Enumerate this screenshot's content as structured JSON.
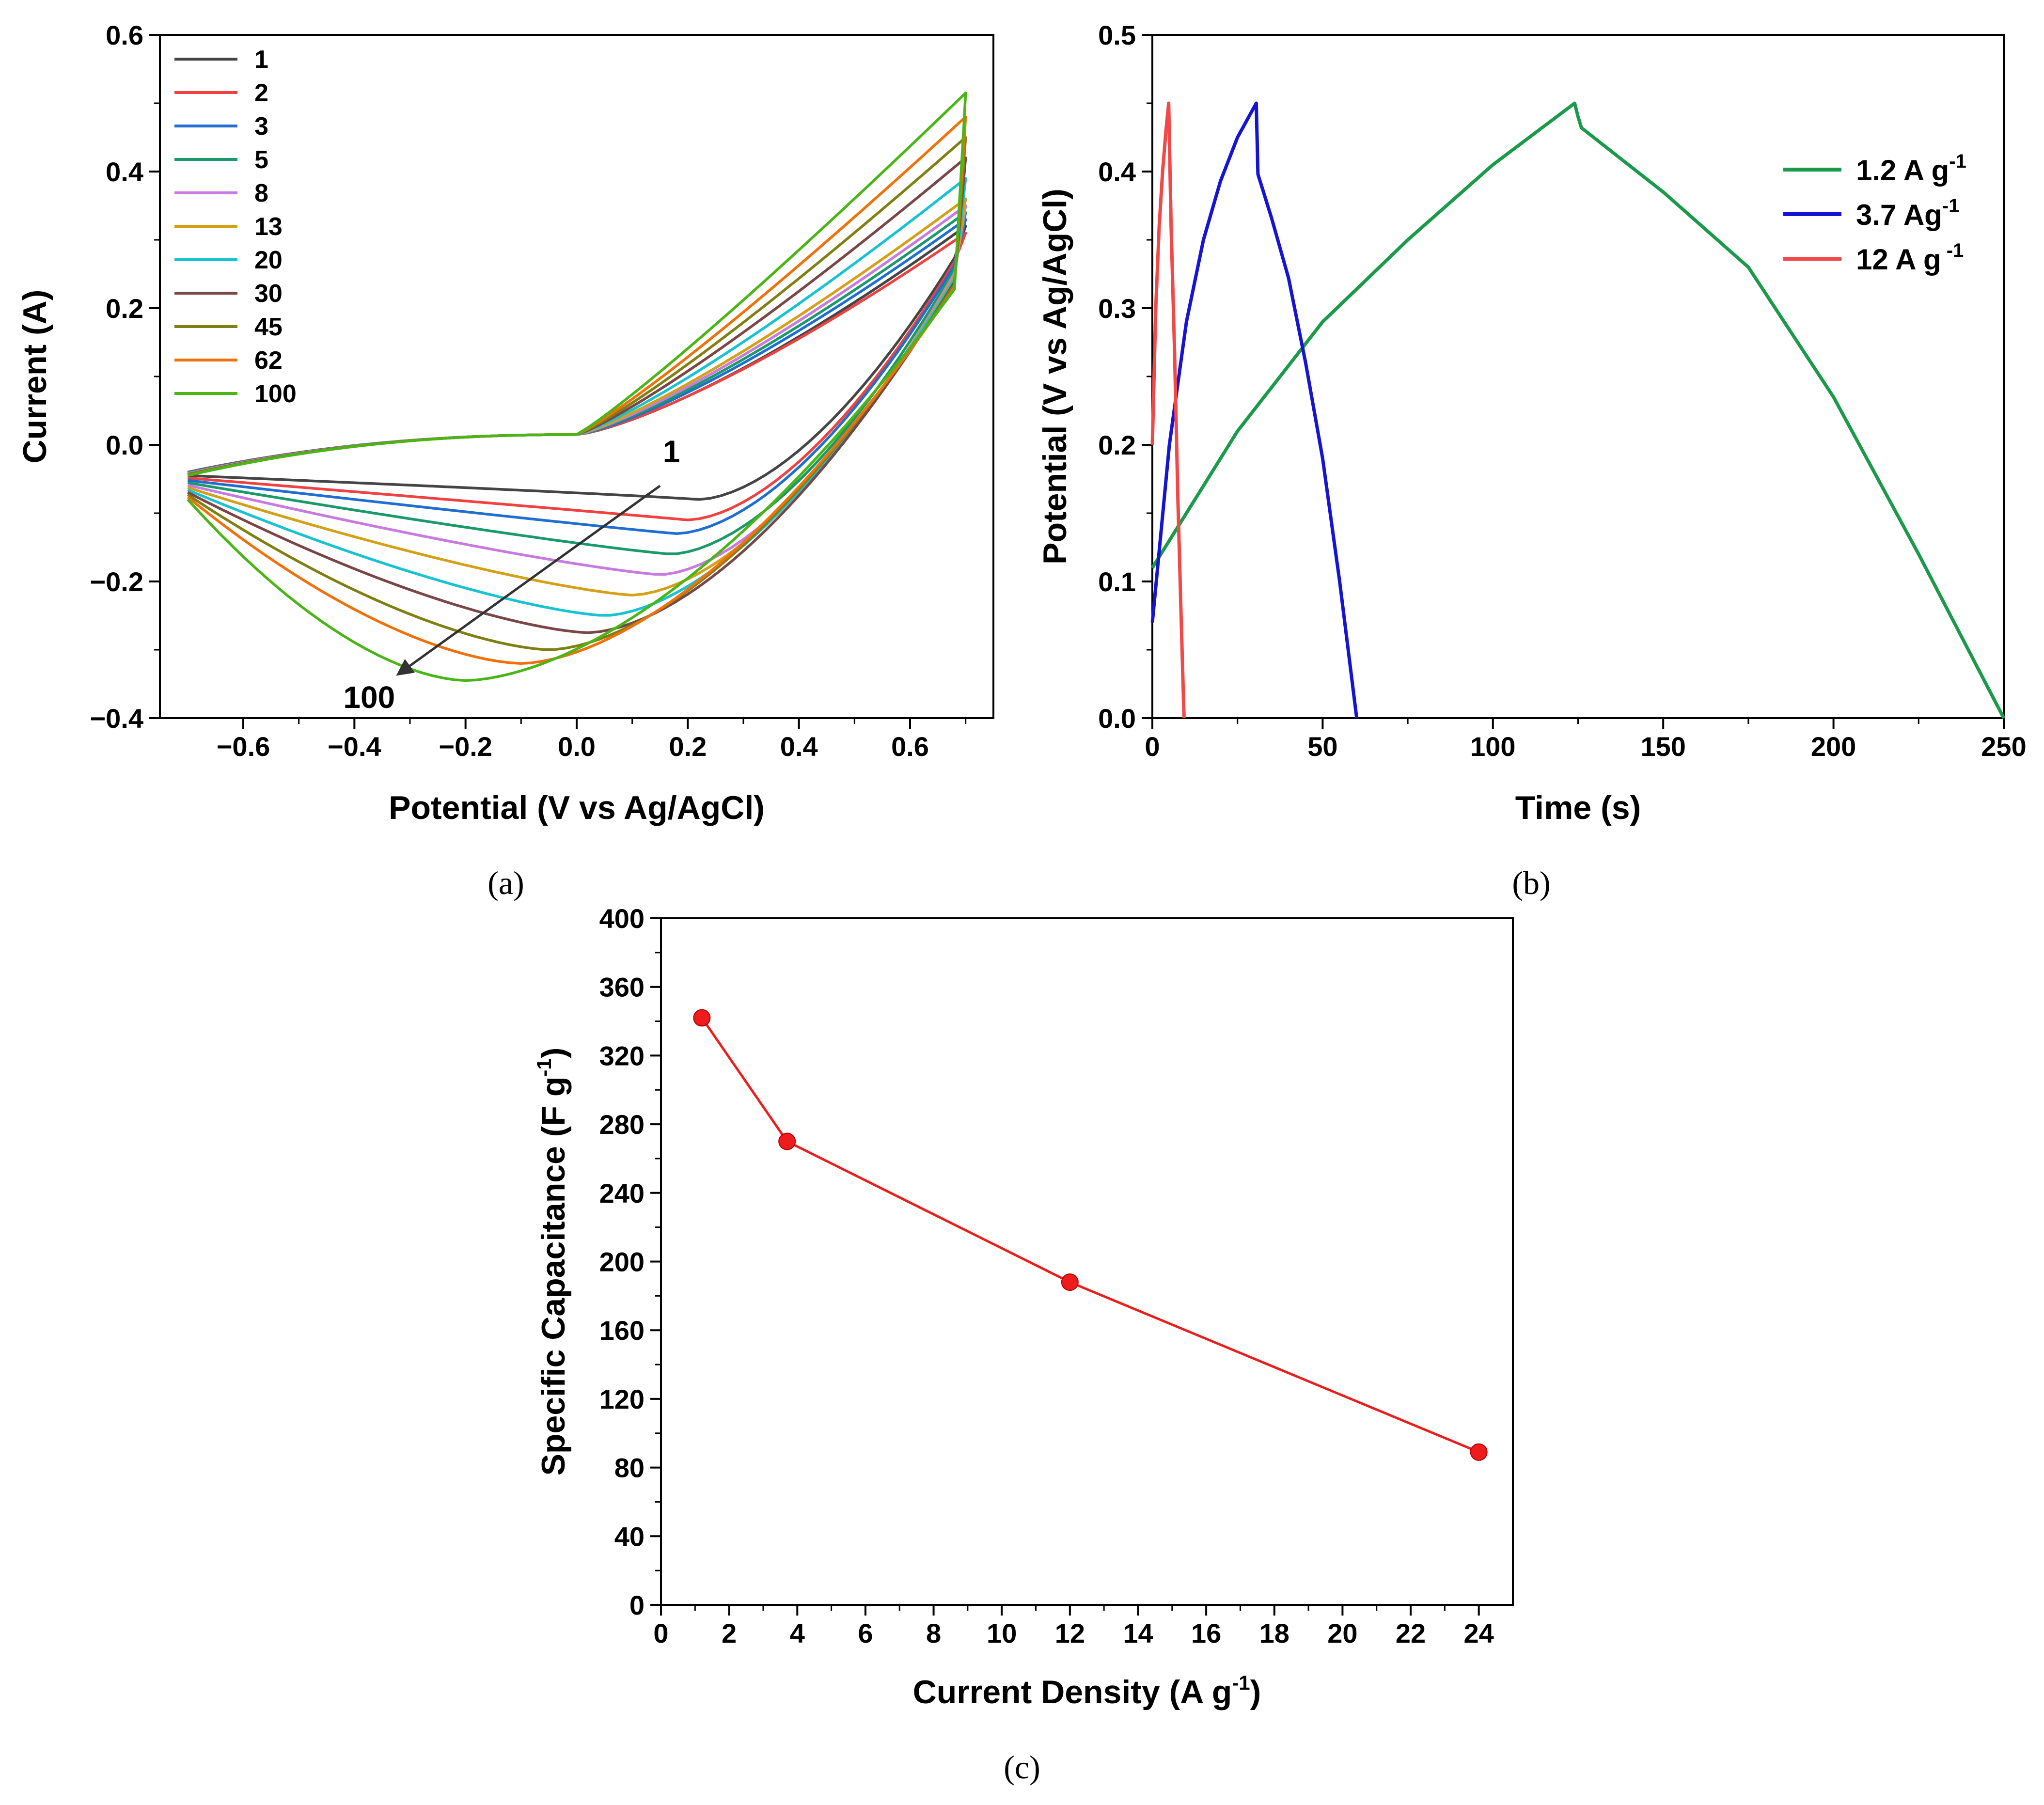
{
  "chart_data": [
    {
      "panel": "(a)",
      "type": "line",
      "xlabel": "Potential (V vs Ag/AgCl)",
      "ylabel": "Current (A)",
      "xlim": [
        -0.75,
        0.75
      ],
      "ylim": [
        -0.4,
        0.6
      ],
      "xticks": [
        -0.6,
        -0.4,
        -0.2,
        0.0,
        0.2,
        0.4,
        0.6
      ],
      "yticks": [
        -0.4,
        -0.2,
        0.0,
        0.2,
        0.4,
        0.6
      ],
      "xtick_labels": [
        "−0.6",
        "−0.4",
        "−0.2",
        "0.0",
        "0.2",
        "0.4",
        "0.6"
      ],
      "ytick_labels": [
        "−0.4",
        "−0.2",
        "0.0",
        "0.2",
        "0.4",
        "0.6"
      ],
      "legend_position": "top-left",
      "annotations": {
        "start": "1",
        "end": "100"
      },
      "series": [
        {
          "name": "1",
          "color": "#454545",
          "upper_end": 0.32,
          "cathodic_min": -0.08,
          "peak_x": 0.22
        },
        {
          "name": "2",
          "color": "#f04141",
          "upper_end": 0.31,
          "cathodic_min": -0.11,
          "peak_x": 0.2
        },
        {
          "name": "3",
          "color": "#1f6fd0",
          "upper_end": 0.33,
          "cathodic_min": -0.13,
          "peak_x": 0.18
        },
        {
          "name": "5",
          "color": "#1a9a6b",
          "upper_end": 0.34,
          "cathodic_min": -0.16,
          "peak_x": 0.17
        },
        {
          "name": "8",
          "color": "#c77be0",
          "upper_end": 0.35,
          "cathodic_min": -0.19,
          "peak_x": 0.15
        },
        {
          "name": "13",
          "color": "#d4a017",
          "upper_end": 0.36,
          "cathodic_min": -0.22,
          "peak_x": 0.1
        },
        {
          "name": "20",
          "color": "#17c3d1",
          "upper_end": 0.39,
          "cathodic_min": -0.25,
          "peak_x": 0.05
        },
        {
          "name": "30",
          "color": "#7a4646",
          "upper_end": 0.42,
          "cathodic_min": -0.275,
          "peak_x": 0.02
        },
        {
          "name": "45",
          "color": "#7f7f12",
          "upper_end": 0.45,
          "cathodic_min": -0.3,
          "peak_x": -0.05
        },
        {
          "name": "62",
          "color": "#f0700a",
          "upper_end": 0.48,
          "cathodic_min": -0.32,
          "peak_x": -0.1
        },
        {
          "name": "100",
          "color": "#4ab516",
          "upper_end": 0.515,
          "cathodic_min": -0.345,
          "peak_x": -0.2
        }
      ]
    },
    {
      "panel": "(b)",
      "type": "line",
      "xlabel": "Time (s)",
      "ylabel": "Potential (V vs Ag/AgCl)",
      "xlim": [
        0,
        250
      ],
      "ylim": [
        0,
        0.5
      ],
      "xticks": [
        0,
        50,
        100,
        150,
        200,
        250
      ],
      "yticks": [
        0.0,
        0.1,
        0.2,
        0.3,
        0.4,
        0.5
      ],
      "xtick_labels": [
        "0",
        "50",
        "100",
        "150",
        "200",
        "250"
      ],
      "ytick_labels": [
        "0.0",
        "0.1",
        "0.2",
        "0.3",
        "0.4",
        "0.5"
      ],
      "legend_position": "top-right",
      "series": [
        {
          "name": "1.2 A g",
          "sup": "-1",
          "color": "#1a9a4a",
          "x": [
            0,
            10,
            25,
            50,
            75,
            100,
            124,
            125,
            126,
            150,
            175,
            200,
            225,
            250
          ],
          "y": [
            0.11,
            0.15,
            0.21,
            0.29,
            0.35,
            0.405,
            0.45,
            0.44,
            0.432,
            0.385,
            0.33,
            0.235,
            0.12,
            0.0
          ]
        },
        {
          "name": "3.7 Ag",
          "sup": "-1",
          "color": "#1414d2",
          "x": [
            0,
            5,
            10,
            15,
            20,
            25,
            30.5,
            31,
            35,
            40,
            45,
            50,
            55,
            60
          ],
          "y": [
            0.07,
            0.2,
            0.29,
            0.35,
            0.393,
            0.425,
            0.45,
            0.398,
            0.366,
            0.322,
            0.26,
            0.19,
            0.1,
            0.0
          ]
        },
        {
          "name": "12 A g",
          "sup": " -1",
          "color": "#f24848",
          "x": [
            0,
            1,
            2,
            3,
            4,
            4.8,
            5.5,
            6.5,
            7.5,
            8.5,
            9.3
          ],
          "y": [
            0.2,
            0.3,
            0.36,
            0.4,
            0.43,
            0.45,
            0.36,
            0.27,
            0.16,
            0.07,
            0.0
          ]
        }
      ]
    },
    {
      "panel": "(c)",
      "type": "line",
      "xlabel": "Current Density (A g",
      "xlabel_sup": "-1",
      "xlabel_end": ")",
      "ylabel": "Specific Capacitance (F g",
      "ylabel_sup": "-1",
      "ylabel_end": ")",
      "xlim": [
        0,
        25
      ],
      "ylim": [
        0,
        400
      ],
      "xticks": [
        0,
        2,
        4,
        6,
        8,
        10,
        12,
        14,
        16,
        18,
        20,
        22,
        24
      ],
      "yticks": [
        0,
        40,
        80,
        120,
        160,
        200,
        240,
        280,
        320,
        360,
        400
      ],
      "xtick_labels": [
        "0",
        "2",
        "4",
        "6",
        "8",
        "10",
        "12",
        "14",
        "16",
        "18",
        "20",
        "22",
        "24"
      ],
      "ytick_labels": [
        "0",
        "40",
        "80",
        "120",
        "160",
        "200",
        "240",
        "280",
        "320",
        "360",
        "400"
      ],
      "series": [
        {
          "color": "#ee1c1c",
          "x": [
            1.2,
            3.7,
            12,
            24
          ],
          "y": [
            342,
            270,
            188,
            89
          ]
        }
      ]
    }
  ]
}
